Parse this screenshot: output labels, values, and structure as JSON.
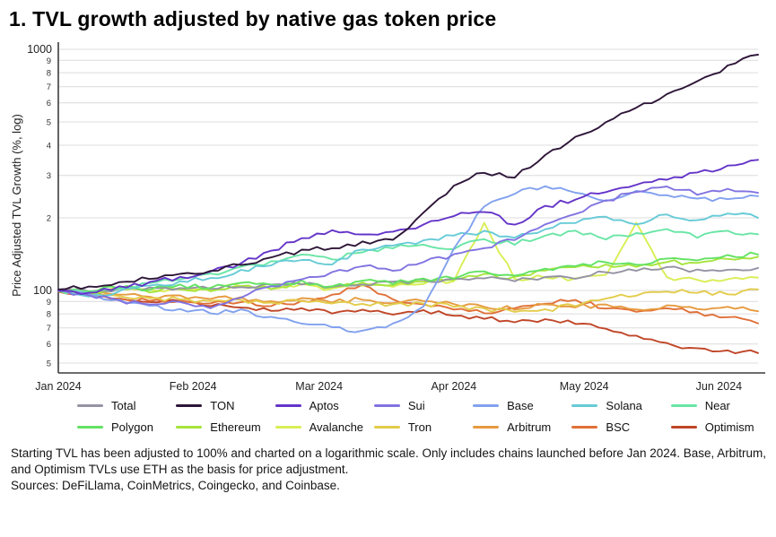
{
  "title": "1. TVL growth adjusted by native gas token price",
  "footnote": {
    "text": "Starting TVL has been adjusted to 100% and charted on a logarithmic scale. Only includes chains launched before Jan 2024. Base, Arbitrum, and Optimism TVLs use ETH as the basis for price adjustment.",
    "sources": "Sources: DeFiLlama, CoinMetrics, Coingecko, and Coinbase."
  },
  "chart_data": {
    "type": "line",
    "title": "1. TVL growth adjusted by native gas token price",
    "xlabel": "",
    "ylabel": "Price Adjusted TVL Growth (%, log)",
    "y_scale": "log",
    "ylim": [
      46,
      1060
    ],
    "y_major_ticks": [
      1000,
      100
    ],
    "y_minor_ticks": [
      900,
      800,
      700,
      600,
      500,
      400,
      300,
      200,
      90,
      80,
      70,
      60,
      50
    ],
    "grid": "horizontal",
    "legend_position": "bottom",
    "x_tick_labels": [
      "Jan 2024",
      "Feb 2024",
      "Mar 2024",
      "Apr 2024",
      "May 2024",
      "Jun 2024"
    ],
    "x_tick_days": [
      0,
      31,
      60,
      91,
      121,
      152
    ],
    "x_total_days": 161,
    "x_unit": "weeks since Jan 1, 2024",
    "x": [
      0,
      1,
      2,
      3,
      4,
      5,
      6,
      7,
      8,
      9,
      10,
      11,
      12,
      13,
      14,
      15,
      16,
      17,
      18,
      19,
      20,
      21,
      22,
      23
    ],
    "series": [
      {
        "name": "Total",
        "color": "#9593a4",
        "values": [
          100,
          100,
          101,
          102,
          103,
          102,
          104,
          105,
          106,
          104,
          107,
          108,
          110,
          111,
          113,
          110,
          114,
          112,
          120,
          122,
          124,
          121,
          123,
          124
        ]
      },
      {
        "name": "TON",
        "color": "#2e1638",
        "values": [
          100,
          104,
          108,
          112,
          116,
          121,
          128,
          136,
          146,
          150,
          158,
          162,
          210,
          270,
          310,
          295,
          360,
          430,
          500,
          575,
          650,
          740,
          850,
          950
        ]
      },
      {
        "name": "Aptos",
        "color": "#6434c8",
        "values": [
          100,
          98,
          103,
          108,
          113,
          120,
          130,
          145,
          165,
          178,
          172,
          176,
          186,
          205,
          212,
          188,
          222,
          240,
          258,
          272,
          288,
          308,
          328,
          348
        ]
      },
      {
        "name": "Sui",
        "color": "#8173e0",
        "values": [
          100,
          96,
          91,
          87,
          90,
          85,
          94,
          104,
          112,
          118,
          126,
          121,
          131,
          140,
          150,
          163,
          186,
          207,
          236,
          256,
          268,
          252,
          262,
          254
        ]
      },
      {
        "name": "Base",
        "color": "#82a1ee",
        "values": [
          100,
          97,
          91,
          86,
          84,
          81,
          83,
          77,
          73,
          70,
          68,
          73,
          86,
          150,
          222,
          254,
          268,
          254,
          236,
          258,
          250,
          238,
          240,
          246
        ]
      },
      {
        "name": "Solana",
        "color": "#66cbd6",
        "values": [
          100,
          94,
          99,
          104,
          108,
          113,
          121,
          128,
          135,
          128,
          148,
          155,
          160,
          168,
          176,
          164,
          181,
          191,
          201,
          186,
          206,
          196,
          210,
          200
        ]
      },
      {
        "name": "Near",
        "color": "#69e5a6",
        "values": [
          100,
          97,
          102,
          107,
          111,
          117,
          124,
          132,
          140,
          134,
          145,
          150,
          156,
          149,
          163,
          156,
          169,
          176,
          164,
          173,
          179,
          167,
          176,
          171
        ]
      },
      {
        "name": "Polygon",
        "color": "#63e263",
        "values": [
          100,
          99,
          103,
          101,
          105,
          103,
          108,
          105,
          109,
          104,
          109,
          107,
          111,
          113,
          119,
          116,
          123,
          127,
          131,
          129,
          136,
          133,
          139,
          141
        ]
      },
      {
        "name": "Ethereum",
        "color": "#a6e43c",
        "values": [
          100,
          98,
          101,
          99,
          102,
          100,
          104,
          102,
          106,
          103,
          107,
          105,
          109,
          112,
          116,
          113,
          120,
          124,
          128,
          126,
          132,
          129,
          135,
          138
        ]
      },
      {
        "name": "Avalanche",
        "color": "#d9ee55",
        "values": [
          100,
          98,
          102,
          100,
          103,
          101,
          105,
          102,
          106,
          101,
          105,
          103,
          107,
          110,
          190,
          112,
          114,
          111,
          116,
          190,
          113,
          110,
          112,
          113
        ]
      },
      {
        "name": "Tron",
        "color": "#e2cc4a",
        "values": [
          100,
          98,
          95,
          93,
          92,
          90,
          91,
          89,
          90,
          88,
          89,
          87,
          88,
          86,
          84,
          81,
          83,
          87,
          92,
          96,
          100,
          98,
          97,
          101
        ]
      },
      {
        "name": "Arbitrum",
        "color": "#e69b3f",
        "values": [
          100,
          98,
          96,
          94,
          95,
          92,
          93,
          91,
          92,
          90,
          92,
          89,
          91,
          88,
          86,
          84,
          87,
          85,
          88,
          84,
          86,
          83,
          85,
          82
        ]
      },
      {
        "name": "BSC",
        "color": "#e07038",
        "values": [
          100,
          97,
          93,
          90,
          91,
          88,
          89,
          87,
          90,
          96,
          105,
          92,
          88,
          84,
          81,
          84,
          88,
          91,
          85,
          82,
          84,
          81,
          77,
          73
        ]
      },
      {
        "name": "Optimism",
        "color": "#c04628",
        "values": [
          100,
          96,
          92,
          89,
          90,
          87,
          85,
          83,
          84,
          81,
          83,
          80,
          82,
          79,
          77,
          74,
          76,
          73,
          70,
          65,
          60,
          57,
          56,
          55
        ]
      }
    ]
  }
}
